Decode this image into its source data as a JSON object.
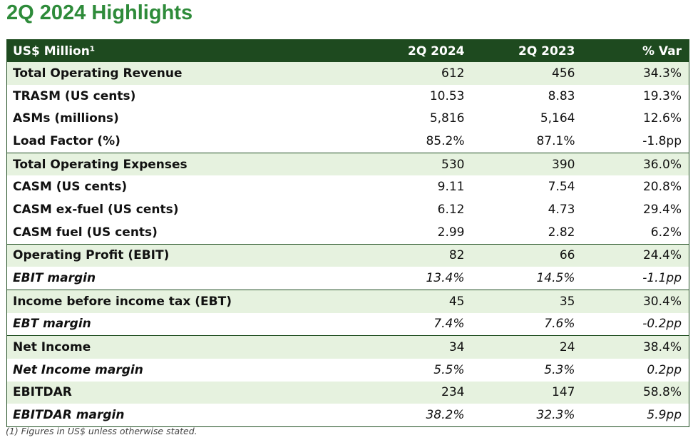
{
  "header": {
    "title": "2Q 2024 Highlights"
  },
  "table": {
    "columns": [
      "US$ Million¹",
      "2Q 2024",
      "2Q 2023",
      "% Var"
    ],
    "rows": [
      [
        "Total Operating Revenue",
        "612",
        "456",
        "34.3%"
      ],
      [
        "TRASM (US cents)",
        "10.53",
        "8.83",
        "19.3%"
      ],
      [
        "ASMs (millions)",
        "5,816",
        "5,164",
        "12.6%"
      ],
      [
        "Load Factor (%)",
        "85.2%",
        "87.1%",
        "-1.8pp"
      ],
      [
        "Total Operating Expenses",
        "530",
        "390",
        "36.0%"
      ],
      [
        "CASM (US cents)",
        "9.11",
        "7.54",
        "20.8%"
      ],
      [
        "CASM ex-fuel (US cents)",
        "6.12",
        "4.73",
        "29.4%"
      ],
      [
        "CASM fuel (US cents)",
        "2.99",
        "2.82",
        "6.2%"
      ],
      [
        "Operating Profit (EBIT)",
        "82",
        "66",
        "24.4%"
      ],
      [
        "EBIT margin",
        "13.4%",
        "14.5%",
        "-1.1pp"
      ],
      [
        "Income before income tax (EBT)",
        "45",
        "35",
        "30.4%"
      ],
      [
        "EBT margin",
        "7.4%",
        "7.6%",
        "-0.2pp"
      ],
      [
        "Net Income",
        "34",
        "24",
        "38.4%"
      ],
      [
        "Net Income margin",
        "5.5%",
        "5.3%",
        "0.2pp"
      ],
      [
        "EBITDAR",
        "234",
        "147",
        "58.8%"
      ],
      [
        "EBITDAR margin",
        "38.2%",
        "32.3%",
        "5.9pp"
      ]
    ]
  },
  "footnote": "(1) Figures in US$ unless otherwise stated."
}
